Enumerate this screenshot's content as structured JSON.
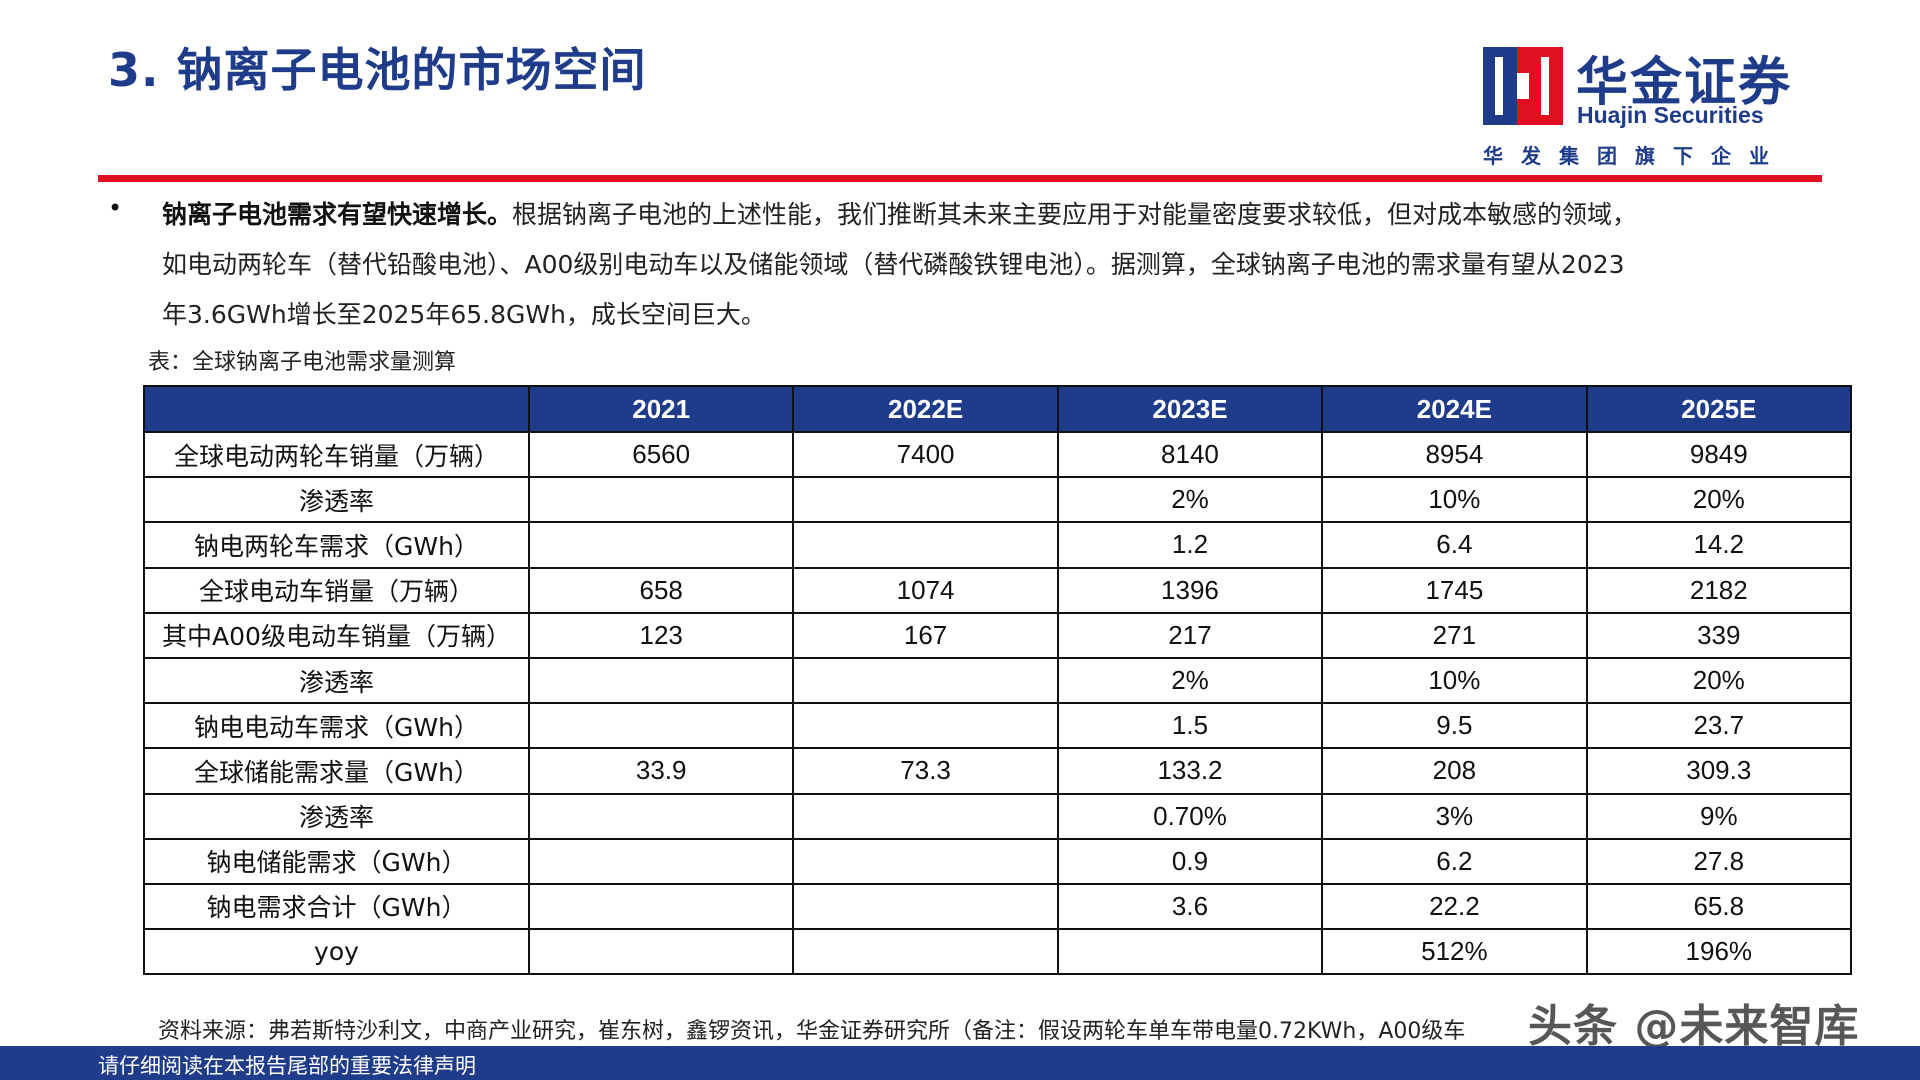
{
  "title": "3. 钠离子电池的市场空间",
  "logo": {
    "name_cn": "华金证券",
    "name_en": "Huajin Securities",
    "subtitle": "华发集团旗下企业",
    "color": "#1F3C8A",
    "accent": "#E01020"
  },
  "bullet": {
    "symbol": "•",
    "lead": "钠离子电池需求有望快速增长。",
    "text_line1": "根据钠离子电池的上述性能，我们推断其未来主要应用于对能量密度要求较低，但对成本敏感的领域，",
    "text_line2": "如电动两轮车（替代铅酸电池）、A00级别电动车以及储能领域（替代磷酸铁锂电池）。据测算，全球钠离子电池的需求量有望从2023",
    "text_line3": "年3.6GWh增长至2025年65.8GWh，成长空间巨大。"
  },
  "table_caption": "表：全球钠离子电池需求量测算",
  "table": {
    "header": [
      "",
      "2021",
      "2022E",
      "2023E",
      "2024E",
      "2025E"
    ],
    "rows": [
      [
        "全球电动两轮车销量（万辆）",
        "6560",
        "7400",
        "8140",
        "8954",
        "9849"
      ],
      [
        "渗透率",
        "",
        "",
        "2%",
        "10%",
        "20%"
      ],
      [
        "钠电两轮车需求（GWh）",
        "",
        "",
        "1.2",
        "6.4",
        "14.2"
      ],
      [
        "全球电动车销量（万辆）",
        "658",
        "1074",
        "1396",
        "1745",
        "2182"
      ],
      [
        "其中A00级电动车销量（万辆）",
        "123",
        "167",
        "217",
        "271",
        "339"
      ],
      [
        "渗透率",
        "",
        "",
        "2%",
        "10%",
        "20%"
      ],
      [
        "钠电电动车需求（GWh）",
        "",
        "",
        "1.5",
        "9.5",
        "23.7"
      ],
      [
        "全球储能需求量（GWh）",
        "33.9",
        "73.3",
        "133.2",
        "208",
        "309.3"
      ],
      [
        "渗透率",
        "",
        "",
        "0.70%",
        "3%",
        "9%"
      ],
      [
        "钠电储能需求（GWh）",
        "",
        "",
        "0.9",
        "6.2",
        "27.8"
      ],
      [
        "钠电需求合计（GWh）",
        "",
        "",
        "3.6",
        "22.2",
        "65.8"
      ],
      [
        "yoy",
        "",
        "",
        "",
        "512%",
        "196%"
      ]
    ]
  },
  "source": "资料来源：弗若斯特沙利文，中商产业研究，崔东树，鑫锣资讯，华金证券研究所（备注：假设两轮车单车带电量0.72KWh，A00级车",
  "footer": "请仔细阅读在本报告尾部的重要法律声明",
  "watermark": "头条 @未来智库"
}
